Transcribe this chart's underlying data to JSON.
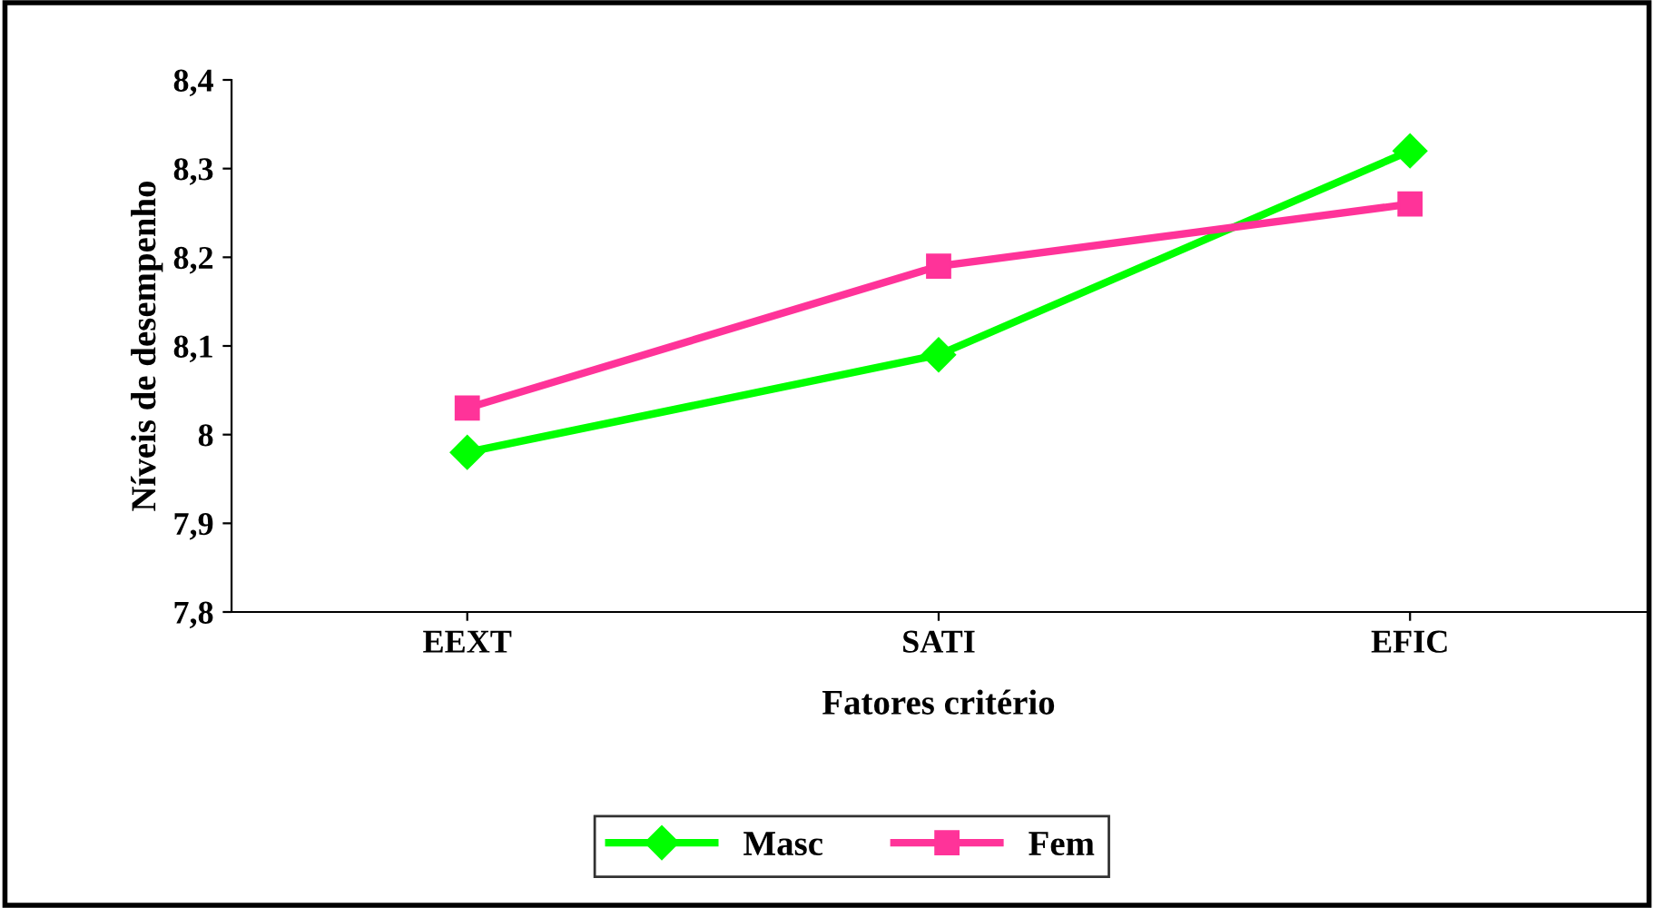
{
  "chart_data": {
    "type": "line",
    "xlabel": "Fatores critério",
    "ylabel": "Níveis de desempenho",
    "categories": [
      "EEXT",
      "SATI",
      "EFIC"
    ],
    "series": [
      {
        "name": "Masc",
        "color": "#00ff00",
        "values": [
          7.98,
          8.09,
          8.32
        ],
        "marker": "diamond"
      },
      {
        "name": "Fem",
        "color": "#ff3399",
        "values": [
          8.03,
          8.19,
          8.26
        ],
        "marker": "square"
      }
    ],
    "ylim": [
      7.8,
      8.4
    ],
    "yticks": [
      {
        "value": 7.8,
        "label": "7,8"
      },
      {
        "value": 7.9,
        "label": "7,9"
      },
      8,
      {
        "value": 8.1,
        "label": "8,1"
      },
      {
        "value": 8.2,
        "label": "8,2"
      },
      {
        "value": 8.3,
        "label": "8,3"
      },
      {
        "value": 8.4,
        "label": "8,4"
      }
    ],
    "grid": false,
    "legend": "bottom",
    "line_style": "solid"
  }
}
